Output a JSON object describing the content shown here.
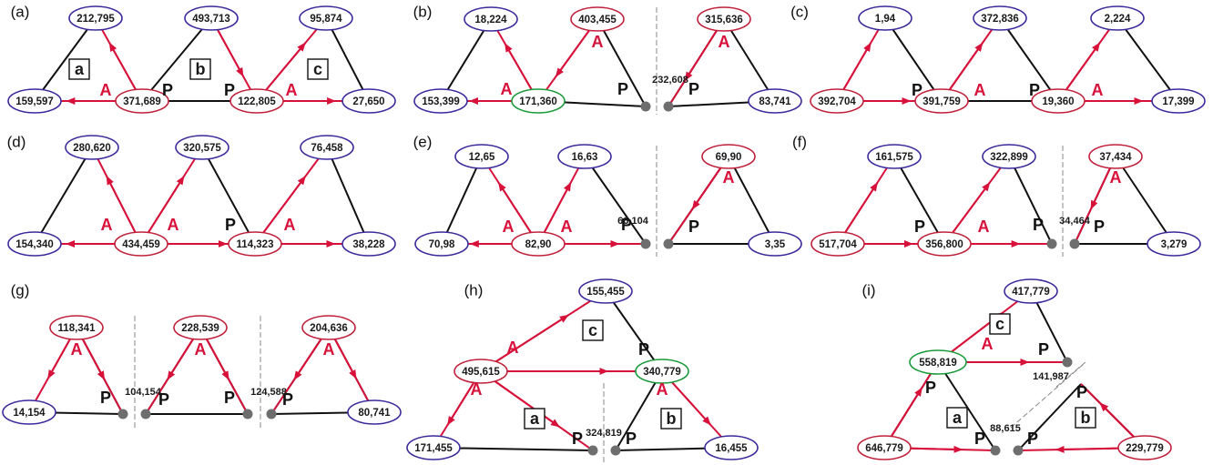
{
  "colors": {
    "edge": "#111111",
    "arrow": "#d7113a",
    "node_blue": "#3a2a9c",
    "node_red": "#c0203a",
    "node_green": "#1a9a3a",
    "junction": "#6e6e6e",
    "divider": "#888888"
  },
  "panels": [
    {
      "label": "(a)",
      "nodes": [
        {
          "value": "212,795",
          "border": "blue"
        },
        {
          "value": "493,713",
          "border": "blue"
        },
        {
          "value": "95,874",
          "border": "blue"
        },
        {
          "value": "159,597",
          "border": "blue"
        },
        {
          "value": "371,689",
          "border": "red"
        },
        {
          "value": "122,805",
          "border": "red"
        },
        {
          "value": "27,650",
          "border": "blue"
        }
      ],
      "modules": [
        "a",
        "b",
        "c"
      ],
      "labels": [
        "A",
        "P",
        "P",
        "A"
      ]
    },
    {
      "label": "(b)",
      "nodes": [
        {
          "value": "18,224",
          "border": "blue"
        },
        {
          "value": "403,455",
          "border": "red"
        },
        {
          "value": "315,636",
          "border": "red"
        },
        {
          "value": "153,399",
          "border": "blue"
        },
        {
          "value": "171,360",
          "border": "green"
        },
        {
          "value": "83,741",
          "border": "blue"
        }
      ],
      "sum": "232,608",
      "labels": [
        "A",
        "A",
        "A",
        "P",
        "P"
      ]
    },
    {
      "label": "(c)",
      "nodes": [
        {
          "value": "1,94",
          "border": "blue"
        },
        {
          "value": "372,836",
          "border": "blue"
        },
        {
          "value": "2,224",
          "border": "blue"
        },
        {
          "value": "392,704",
          "border": "red"
        },
        {
          "value": "391,759",
          "border": "red"
        },
        {
          "value": "19,360",
          "border": "red"
        },
        {
          "value": "17,399",
          "border": "blue"
        }
      ],
      "labels": [
        "P",
        "A",
        "P",
        "A"
      ]
    },
    {
      "label": "(d)",
      "nodes": [
        {
          "value": "280,620",
          "border": "blue"
        },
        {
          "value": "320,575",
          "border": "blue"
        },
        {
          "value": "76,458",
          "border": "blue"
        },
        {
          "value": "154,340",
          "border": "blue"
        },
        {
          "value": "434,459",
          "border": "red"
        },
        {
          "value": "114,323",
          "border": "red"
        },
        {
          "value": "38,228",
          "border": "blue"
        }
      ],
      "labels": [
        "A",
        "A",
        "P",
        "A"
      ]
    },
    {
      "label": "(e)",
      "nodes": [
        {
          "value": "12,65",
          "border": "blue"
        },
        {
          "value": "16,63",
          "border": "blue"
        },
        {
          "value": "69,90",
          "border": "red"
        },
        {
          "value": "70,98",
          "border": "blue"
        },
        {
          "value": "82,90",
          "border": "red"
        },
        {
          "value": "3,35",
          "border": "blue"
        }
      ],
      "sum": "66,104",
      "labels": [
        "A",
        "A",
        "A",
        "P",
        "P"
      ]
    },
    {
      "label": "(f)",
      "nodes": [
        {
          "value": "161,575",
          "border": "blue"
        },
        {
          "value": "322,899",
          "border": "blue"
        },
        {
          "value": "37,434",
          "border": "red"
        },
        {
          "value": "517,704",
          "border": "red"
        },
        {
          "value": "356,800",
          "border": "red"
        },
        {
          "value": "3,279",
          "border": "blue"
        }
      ],
      "sum": "34,464",
      "labels": [
        "P",
        "A",
        "A",
        "P",
        "P"
      ]
    },
    {
      "label": "(g)",
      "nodes": [
        {
          "value": "118,341",
          "border": "red"
        },
        {
          "value": "228,539",
          "border": "red"
        },
        {
          "value": "204,636",
          "border": "red"
        },
        {
          "value": "14,154",
          "border": "blue"
        },
        {
          "value": "80,741",
          "border": "blue"
        }
      ],
      "sums": [
        "104,154",
        "124,588"
      ],
      "labels": [
        "A",
        "A",
        "A",
        "P",
        "P",
        "P",
        "P"
      ]
    },
    {
      "label": "(h)",
      "nodes": [
        {
          "value": "155,455",
          "border": "blue"
        },
        {
          "value": "495,615",
          "border": "red"
        },
        {
          "value": "340,779",
          "border": "green"
        },
        {
          "value": "171,455",
          "border": "blue"
        },
        {
          "value": "16,455",
          "border": "blue"
        }
      ],
      "modules": [
        "c",
        "a",
        "b"
      ],
      "sum": "324,819",
      "labels": [
        "A",
        "A",
        "A",
        "P",
        "P",
        "P"
      ]
    },
    {
      "label": "(i)",
      "nodes": [
        {
          "value": "417,779",
          "border": "blue"
        },
        {
          "value": "558,819",
          "border": "green"
        },
        {
          "value": "646,779",
          "border": "red"
        },
        {
          "value": "229,779",
          "border": "red"
        }
      ],
      "modules": [
        "c",
        "a",
        "b"
      ],
      "sums": [
        "141,987",
        "88,615"
      ],
      "labels": [
        "A",
        "P",
        "P",
        "P",
        "P",
        "P"
      ]
    }
  ]
}
